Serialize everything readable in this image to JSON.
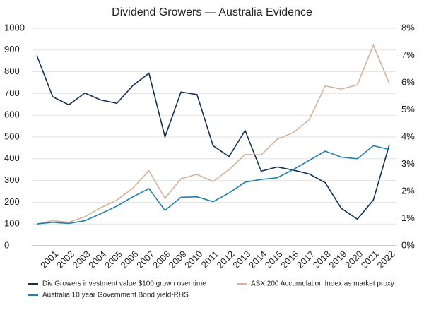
{
  "chart_data": {
    "type": "line",
    "title": "Dividend Growers — Australia Evidence",
    "categories": [
      null,
      "2001",
      "2002",
      "2003",
      "2004",
      "2005",
      "2006",
      "2007",
      "2008",
      "2009",
      "2010",
      "2011",
      "2012",
      "2013",
      "2014",
      "2015",
      "2016",
      "2017",
      "2018",
      "2019",
      "2020",
      "2021",
      "2022"
    ],
    "series": [
      {
        "name": "Div Growers investment value $100 grown over time",
        "color": "#14304d",
        "values": [
          875,
          685,
          648,
          702,
          670,
          655,
          737,
          793,
          500,
          707,
          695,
          460,
          410,
          530,
          343,
          362,
          348,
          330,
          290,
          172,
          122,
          210,
          465
        ]
      },
      {
        "name": "ASX 200 Accumulation Index as market proxy",
        "color": "#d4b29c",
        "values": [
          100,
          115,
          108,
          133,
          175,
          210,
          265,
          345,
          218,
          308,
          328,
          295,
          350,
          420,
          418,
          490,
          520,
          580,
          735,
          720,
          740,
          922,
          745
        ]
      },
      {
        "name": "Australia 10 year Government Bond yield-RHS",
        "color": "#1f80b0",
        "axis": "y2",
        "values": [
          0.8,
          0.86,
          0.82,
          0.92,
          1.18,
          1.46,
          1.8,
          2.1,
          1.3,
          1.78,
          1.8,
          1.62,
          1.94,
          2.34,
          2.44,
          2.5,
          2.8,
          3.14,
          3.48,
          3.26,
          3.2,
          3.68,
          3.54
        ]
      }
    ],
    "ylim": [
      0,
      1000
    ],
    "yticks": [
      0,
      100,
      200,
      300,
      400,
      500,
      600,
      700,
      800,
      900,
      1000
    ],
    "y2lim": [
      0,
      8
    ],
    "y2ticks": [
      {
        "value": 0,
        "label": "0%"
      },
      {
        "value": 1,
        "label": "1%"
      },
      {
        "value": 2,
        "label": "2%"
      },
      {
        "value": 3,
        "label": "3%"
      },
      {
        "value": 4,
        "label": "4%"
      },
      {
        "value": 5,
        "label": "5%"
      },
      {
        "value": 6,
        "label": "6%"
      },
      {
        "value": 7,
        "label": "7%"
      },
      {
        "value": 8,
        "label": "8%"
      }
    ],
    "grid": true
  }
}
